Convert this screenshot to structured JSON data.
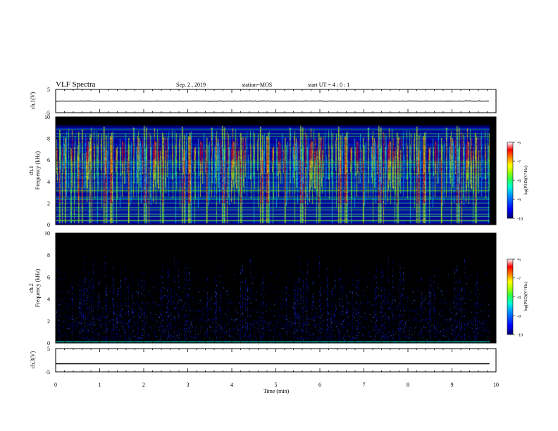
{
  "header": {
    "title": "VLF Spectra",
    "date": "Sep. 2 , 2019",
    "station": "station=MOS",
    "start": "start UT =  4 : 0  : 1"
  },
  "colors": {
    "background": "#ffffff",
    "spectrogram_bg": "#000000",
    "colormap": [
      "#00007a",
      "#0000ff",
      "#0080ff",
      "#00e0ff",
      "#40ff80",
      "#a0ff00",
      "#ffff00",
      "#ff8000",
      "#ff0000",
      "#ffffff"
    ]
  },
  "chart_data": [
    {
      "type": "line",
      "panel": "ch1-voltage",
      "ylabel": "ch.1(V)",
      "ylim": [
        -5,
        5
      ],
      "yticks": [
        "5",
        "-5"
      ],
      "xlim": [
        0,
        10
      ],
      "x": [
        0,
        9.85
      ],
      "values": [
        0,
        0
      ]
    },
    {
      "type": "heatmap",
      "panel": "ch1-spectrogram",
      "ylabel": "ch.1\nFrequency (kHz)",
      "ylim": [
        0,
        10
      ],
      "yticks": [
        "0",
        "2",
        "4",
        "6",
        "8",
        "10"
      ],
      "xlim": [
        0,
        10
      ],
      "data_end_min": 9.85,
      "colorbar": {
        "label": "log(PSD)(V²/Hz)",
        "ticks": [
          "-6",
          "-7",
          "-8",
          "-9",
          "-10"
        ],
        "range": [
          -10,
          -6
        ]
      }
    },
    {
      "type": "heatmap",
      "panel": "ch2-spectrogram",
      "ylabel": "ch.2\nFrequency (kHz)",
      "ylim": [
        0,
        10
      ],
      "yticks": [
        "0",
        "2",
        "4",
        "6",
        "8",
        "10"
      ],
      "xlim": [
        0,
        10
      ],
      "data_end_min": 9.85,
      "colorbar": {
        "label": "log(PSD)(V²/Hz)",
        "ticks": [
          "-6",
          "-7",
          "-8",
          "-9",
          "-10"
        ],
        "range": [
          -10,
          -6
        ]
      }
    },
    {
      "type": "line",
      "panel": "ch3-voltage",
      "ylabel": "ch.3(V)",
      "ylim": [
        -5,
        5
      ],
      "yticks": [
        "5",
        "-5"
      ],
      "xlim": [
        0,
        10
      ],
      "x": [
        0,
        9.85
      ],
      "values": [
        -1.5,
        -1.5
      ]
    }
  ],
  "xaxis": {
    "label": "Time (min)",
    "ticks": [
      "0",
      "1",
      "2",
      "3",
      "4",
      "5",
      "6",
      "7",
      "8",
      "9",
      "10"
    ]
  }
}
